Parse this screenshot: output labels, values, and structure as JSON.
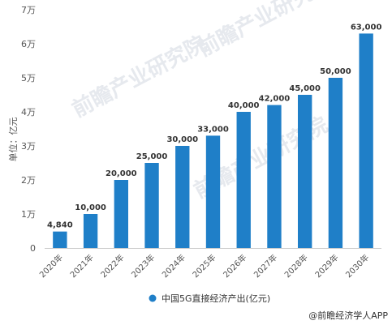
{
  "chart_data": {
    "type": "bar",
    "categories": [
      "2020年",
      "2021年",
      "2022年",
      "2023年",
      "2024年",
      "2025年",
      "2026年",
      "2027年",
      "2028年",
      "2029年",
      "2030年"
    ],
    "series": [
      {
        "name": "中国5G直接经济产出(亿元)",
        "values": [
          4840,
          10000,
          20000,
          25000,
          30000,
          33000,
          40000,
          42000,
          45000,
          50000,
          63000
        ],
        "labels": [
          "4,840",
          "10,000",
          "20,000",
          "25,000",
          "30,000",
          "33,000",
          "40,000",
          "42,000",
          "45,000",
          "50,000",
          "63,000"
        ]
      }
    ],
    "ylabel": "单位：亿元",
    "ylim": [
      0,
      70000
    ],
    "yticks": [
      0,
      10000,
      20000,
      30000,
      40000,
      50000,
      60000,
      70000
    ],
    "ytick_labels": [
      "0",
      "1万",
      "2万",
      "3万",
      "4万",
      "5万",
      "6万",
      "7万"
    ],
    "bar_color": "#1f7fc8",
    "legend_position": "bottom-center",
    "grid": false
  },
  "watermark": {
    "text": "前瞻产业研究院"
  },
  "source": {
    "text": "@前瞻经济学人APP"
  }
}
